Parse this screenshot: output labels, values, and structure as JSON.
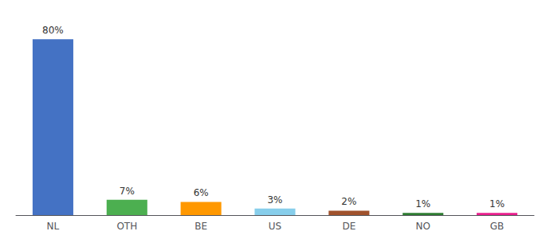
{
  "chart_data": {
    "type": "bar",
    "categories": [
      "NL",
      "OTH",
      "BE",
      "US",
      "DE",
      "NO",
      "GB"
    ],
    "values": [
      80,
      7,
      6,
      3,
      2,
      1,
      1
    ],
    "value_labels": [
      "80%",
      "7%",
      "6%",
      "3%",
      "2%",
      "1%",
      "1%"
    ],
    "colors": [
      "#4472C4",
      "#4CAF50",
      "#FF9800",
      "#87CEEB",
      "#A0522D",
      "#2E7D32",
      "#E91E8C"
    ],
    "ylim": [
      0,
      87
    ],
    "data_labels": true,
    "tick_labels": "x",
    "grid": false
  }
}
